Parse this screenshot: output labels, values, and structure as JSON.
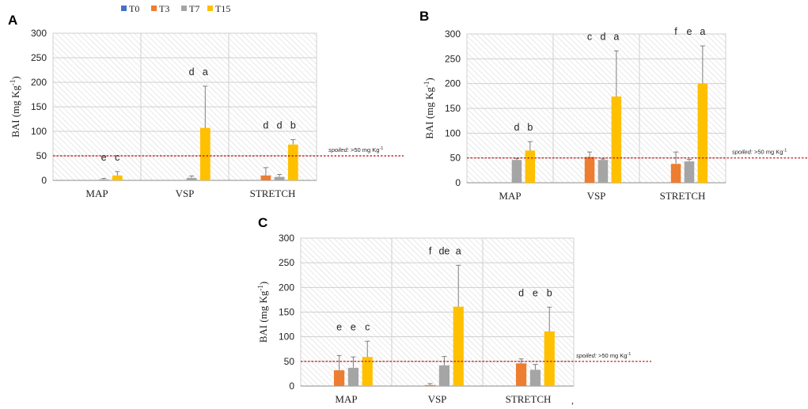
{
  "figure": {
    "legend": [
      {
        "name": "T0",
        "color": "#4472C4"
      },
      {
        "name": "T3",
        "color": "#ED7D31"
      },
      {
        "name": "T7",
        "color": "#A5A5A5"
      },
      {
        "name": "T15",
        "color": "#FFC000"
      }
    ],
    "threshold": {
      "value": 50,
      "label_italic": "spoiled:",
      "label_rest": " >50 mg Kg",
      "label_sup": "-1",
      "color": "#C00000"
    },
    "ylabel_main": "BAI (mg Kg",
    "ylabel_sup": "-1",
    "ylabel_end": ")",
    "trailing_mark": ","
  },
  "chart_data": [
    {
      "panel": "A",
      "type": "bar",
      "categories": [
        "MAP",
        "VSP",
        "STRETCH"
      ],
      "ylim": [
        0,
        300
      ],
      "yticks": [
        0,
        50,
        100,
        150,
        200,
        250,
        300
      ],
      "series": [
        {
          "name": "T0",
          "values": [
            0,
            0,
            0
          ],
          "errors": [
            0,
            0,
            0
          ]
        },
        {
          "name": "T3",
          "values": [
            0,
            0,
            10
          ],
          "errors": [
            0,
            0,
            16
          ]
        },
        {
          "name": "T7",
          "values": [
            2,
            5,
            7
          ],
          "errors": [
            2,
            4,
            5
          ]
        },
        {
          "name": "T15",
          "values": [
            10,
            107,
            73
          ],
          "errors": [
            8,
            85,
            10
          ]
        }
      ],
      "letters": [
        [
          {
            "series": 2,
            "text": "e"
          },
          {
            "series": 3,
            "text": "c"
          }
        ],
        [
          {
            "series": 2,
            "text": "d"
          },
          {
            "series": 3,
            "text": "a"
          }
        ],
        [
          {
            "series": 1,
            "text": "d"
          },
          {
            "series": 2,
            "text": "d"
          },
          {
            "series": 3,
            "text": "b"
          }
        ]
      ]
    },
    {
      "panel": "B",
      "type": "bar",
      "categories": [
        "MAP",
        "VSP",
        "STRETCH"
      ],
      "ylim": [
        0,
        300
      ],
      "yticks": [
        0,
        50,
        100,
        150,
        200,
        250,
        300
      ],
      "series": [
        {
          "name": "T0",
          "values": [
            0,
            0,
            0
          ],
          "errors": [
            0,
            0,
            0
          ]
        },
        {
          "name": "T3",
          "values": [
            0,
            52,
            38
          ],
          "errors": [
            0,
            10,
            24
          ]
        },
        {
          "name": "T7",
          "values": [
            46,
            46,
            43
          ],
          "errors": [
            3,
            2,
            4
          ]
        },
        {
          "name": "T15",
          "values": [
            65,
            174,
            200
          ],
          "errors": [
            18,
            92,
            76
          ]
        }
      ],
      "letters": [
        [
          {
            "series": 2,
            "text": "d"
          },
          {
            "series": 3,
            "text": "b"
          }
        ],
        [
          {
            "series": 1,
            "text": "c"
          },
          {
            "series": 2,
            "text": "d"
          },
          {
            "series": 3,
            "text": "a"
          }
        ],
        [
          {
            "series": 1,
            "text": "f"
          },
          {
            "series": 2,
            "text": "e"
          },
          {
            "series": 3,
            "text": "a"
          }
        ]
      ]
    },
    {
      "panel": "C",
      "type": "bar",
      "categories": [
        "MAP",
        "VSP",
        "STRETCH"
      ],
      "ylim": [
        0,
        300
      ],
      "yticks": [
        0,
        50,
        100,
        150,
        200,
        250,
        300
      ],
      "series": [
        {
          "name": "T0",
          "values": [
            0,
            0,
            0
          ],
          "errors": [
            0,
            0,
            0
          ]
        },
        {
          "name": "T3",
          "values": [
            32,
            2,
            46
          ],
          "errors": [
            30,
            3,
            9
          ]
        },
        {
          "name": "T7",
          "values": [
            37,
            42,
            33
          ],
          "errors": [
            22,
            18,
            11
          ]
        },
        {
          "name": "T15",
          "values": [
            59,
            161,
            111
          ],
          "errors": [
            32,
            84,
            49
          ]
        }
      ],
      "letters": [
        [
          {
            "series": 1,
            "text": "e"
          },
          {
            "series": 2,
            "text": "e"
          },
          {
            "series": 3,
            "text": "c"
          }
        ],
        [
          {
            "series": 1,
            "text": "f"
          },
          {
            "series": 2,
            "text": "de"
          },
          {
            "series": 3,
            "text": "a"
          }
        ],
        [
          {
            "series": 1,
            "text": "d"
          },
          {
            "series": 2,
            "text": "e"
          },
          {
            "series": 3,
            "text": "b"
          }
        ]
      ]
    }
  ]
}
